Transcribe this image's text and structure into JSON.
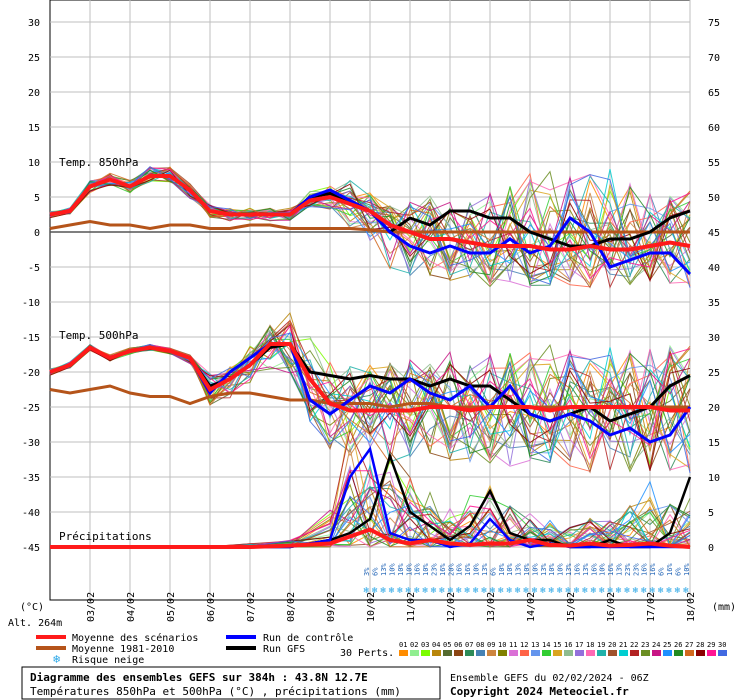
{
  "chart_data": {
    "type": "line",
    "title": "Diagramme des ensembles GEFS sur 384h : 43.8N 12.7E",
    "subtitle": "Températures 850hPa et 500hPa (°C) , précipitations (mm)",
    "run_info": "Ensemble GEFS du 02/02/2024 - 06Z",
    "copyright": "Copyright 2024 Meteociel.fr",
    "altitude": "Alt. 264m",
    "left_unit": "(°C)",
    "right_unit": "(mm)",
    "left_ticks": [
      "30",
      "25",
      "20",
      "15",
      "10",
      "5",
      "0",
      "-5",
      "-10",
      "-15",
      "-20",
      "-25",
      "-30",
      "-35",
      "-40",
      "-45"
    ],
    "right_ticks": [
      "75",
      "70",
      "65",
      "60",
      "55",
      "50",
      "45",
      "40",
      "35",
      "30",
      "25",
      "20",
      "15",
      "10",
      "5",
      "0"
    ],
    "x_labels": [
      "03/02",
      "04/02",
      "05/02",
      "06/02",
      "07/02",
      "08/02",
      "09/02",
      "10/02",
      "11/02",
      "12/02",
      "13/02",
      "14/02",
      "15/02",
      "16/02",
      "17/02",
      "18/02"
    ],
    "section_labels": {
      "t850": "Temp. 850hPa",
      "t500": "Temp. 500hPa",
      "precip": "Précipitations"
    },
    "legend": {
      "mean": "Moyenne des scénarios",
      "clim": "Moyenne 1981-2010",
      "snow": "Risque neige",
      "control": "Run de contrôle",
      "gfs": "Run GFS",
      "perts": "30 Perts."
    },
    "member_labels": [
      "01",
      "02",
      "03",
      "04",
      "05",
      "06",
      "07",
      "08",
      "09",
      "10",
      "11",
      "12",
      "13",
      "14",
      "15",
      "16",
      "17",
      "18",
      "19",
      "20",
      "21",
      "22",
      "23",
      "24",
      "25",
      "26",
      "27",
      "28",
      "29",
      "30"
    ],
    "member_colors": [
      "#ff8c00",
      "#90ee90",
      "#7cfc00",
      "#b8860b",
      "#556b2f",
      "#8b4513",
      "#2e8b57",
      "#4682b4",
      "#cd853f",
      "#808000",
      "#da70d6",
      "#ff6347",
      "#6495ed",
      "#32cd32",
      "#daa520",
      "#8fbc8f",
      "#9370db",
      "#ff69b4",
      "#20b2aa",
      "#a0522d",
      "#00ced1",
      "#b22222",
      "#6b8e23",
      "#c71585",
      "#1e90ff",
      "#228b22",
      "#d2691e",
      "#8b0000",
      "#ff1493",
      "#4169e1"
    ],
    "snow_row": [
      "3%",
      "6%",
      "13%",
      "10%",
      "10%",
      "10%",
      "16%",
      "10%",
      "23%",
      "16%",
      "20%",
      "16%",
      "16%",
      "10%",
      "13%",
      "6%",
      "10%",
      "10%",
      "13%",
      "10%",
      "10%",
      "13%",
      "10%",
      "10%",
      "13%",
      "16%",
      "13%",
      "16%",
      "10%",
      "16%",
      "13%",
      "23%",
      "23%",
      "16%",
      "16%",
      "6%",
      "16%",
      "6%",
      "10%"
    ],
    "t850": {
      "x_days": [
        0,
        0.5,
        1,
        1.5,
        2,
        2.5,
        3,
        3.5,
        4,
        4.5,
        5,
        5.5,
        6,
        6.5,
        7,
        7.5,
        8,
        8.5,
        9,
        9.5,
        10,
        10.5,
        11,
        11.5,
        12,
        12.5,
        13,
        13.5,
        14,
        14.5,
        15,
        15.5,
        16
      ],
      "mean": [
        2.5,
        3,
        6.5,
        7.5,
        6.5,
        8,
        8,
        6,
        3,
        2.5,
        2.5,
        2.5,
        2.5,
        4.5,
        5,
        4,
        3,
        1,
        0,
        -1,
        -1,
        -1.5,
        -2,
        -2,
        -2,
        -2.5,
        -2.5,
        -2,
        -2.5,
        -2.5,
        -2,
        -1.5,
        -2
      ],
      "control": [
        2.5,
        3,
        6.5,
        7.5,
        6.5,
        8,
        8,
        6,
        3,
        2.5,
        2.5,
        2.5,
        2.5,
        5,
        6,
        4.5,
        3,
        0,
        -2,
        -3,
        -2,
        -3,
        -3,
        -1,
        -3,
        -2,
        2,
        0,
        -5,
        -4,
        -3,
        -3,
        -6
      ],
      "gfs": [
        2.5,
        3,
        6.5,
        7.5,
        6.5,
        8,
        8,
        6,
        3,
        2.5,
        2.5,
        2.5,
        2.5,
        5,
        5.5,
        4,
        3,
        0,
        2,
        1,
        3,
        3,
        2,
        2,
        0,
        -1,
        -2,
        -2,
        -1,
        -1,
        0,
        2,
        3
      ],
      "clim": [
        0.5,
        1,
        1.5,
        1,
        1,
        0.5,
        1,
        1,
        0.5,
        0.5,
        1,
        1,
        0.5,
        0.5,
        0.5,
        0.5,
        0.3,
        0,
        0,
        0,
        0,
        0,
        0,
        0,
        0,
        0,
        0,
        0,
        0,
        0,
        0,
        0,
        0
      ],
      "spread_min": [
        2,
        2.5,
        5.5,
        6.5,
        5.5,
        7,
        7,
        4.5,
        2,
        1.5,
        1.5,
        1.5,
        1.5,
        3.5,
        3,
        0,
        -3,
        -6,
        -8,
        -8,
        -8,
        -8,
        -8.5,
        -8,
        -9,
        -9,
        -8.5,
        -9,
        -8.5,
        -8.5,
        -8,
        -8,
        -9
      ],
      "spread_max": [
        3,
        3.5,
        7.5,
        8.5,
        7.5,
        9.5,
        9.5,
        7,
        4,
        3.5,
        3.5,
        3.5,
        3.5,
        6,
        7,
        8,
        6,
        4,
        5,
        6,
        5,
        6,
        7,
        8,
        10,
        10,
        9,
        10,
        11,
        8,
        7,
        6,
        7
      ]
    },
    "t500": {
      "x_days": [
        0,
        0.5,
        1,
        1.5,
        2,
        2.5,
        3,
        3.5,
        4,
        4.5,
        5,
        5.5,
        6,
        6.5,
        7,
        7.5,
        8,
        8.5,
        9,
        9.5,
        10,
        10.5,
        11,
        11.5,
        12,
        12.5,
        13,
        13.5,
        14,
        14.5,
        15,
        15.5,
        16
      ],
      "mean": [
        -20,
        -19,
        -16.5,
        -18,
        -17,
        -16.5,
        -17,
        -18,
        -22.5,
        -21,
        -19,
        -16,
        -16,
        -21,
        -24.5,
        -25.5,
        -25.5,
        -25.5,
        -25.5,
        -25,
        -25,
        -25.5,
        -25,
        -25,
        -25,
        -25.5,
        -25,
        -25,
        -25,
        -25,
        -25,
        -25.5,
        -25.5
      ],
      "control": [
        -20,
        -19,
        -16.5,
        -18,
        -17,
        -16.5,
        -17,
        -18,
        -23,
        -20,
        -18,
        -16,
        -16,
        -24,
        -26,
        -24,
        -22,
        -23,
        -21,
        -23,
        -24,
        -22,
        -25,
        -22,
        -26,
        -27,
        -26,
        -27,
        -29,
        -28,
        -30,
        -29,
        -25
      ],
      "gfs": [
        -20,
        -19,
        -16.5,
        -18,
        -17,
        -16.5,
        -17,
        -18,
        -22,
        -21,
        -19,
        -16.5,
        -16,
        -20,
        -20.5,
        -21,
        -20.5,
        -21,
        -21,
        -22,
        -21,
        -22,
        -22,
        -24,
        -26,
        -27,
        -26,
        -25,
        -27,
        -26,
        -25,
        -22,
        -20.5
      ],
      "clim": [
        -22.5,
        -23,
        -22.5,
        -22,
        -23,
        -23.5,
        -23.5,
        -24.5,
        -23.5,
        -23,
        -23,
        -23.5,
        -24,
        -24,
        -24.5,
        -24.5,
        -24.5,
        -25,
        -24.5,
        -24.5,
        -25,
        -25,
        -25,
        -25,
        -25,
        -25,
        -25,
        -25,
        -25,
        -25,
        -25,
        -25,
        -25
      ],
      "spread_min": [
        -20.5,
        -19.5,
        -17,
        -18.5,
        -17.5,
        -17,
        -17.5,
        -19,
        -25,
        -24,
        -22,
        -20,
        -21,
        -28,
        -32,
        -33,
        -33,
        -34,
        -34,
        -34,
        -34,
        -35,
        -34,
        -35,
        -34,
        -35,
        -35,
        -36,
        -35,
        -36,
        -36,
        -35,
        -36
      ],
      "spread_max": [
        -19.5,
        -18.5,
        -16,
        -17.5,
        -16.5,
        -16,
        -16.5,
        -17.5,
        -20,
        -19,
        -16,
        -13,
        -11,
        -14,
        -17,
        -18,
        -18,
        -18,
        -17,
        -18,
        -16,
        -17,
        -16,
        -16,
        -16,
        -15,
        -16,
        -17,
        -15,
        -16,
        -15,
        -15,
        -15
      ]
    },
    "precip": {
      "x_days": [
        0,
        1,
        2,
        3,
        4,
        5,
        6,
        7,
        7.5,
        8,
        8.5,
        9,
        9.5,
        10,
        10.5,
        11,
        11.5,
        12,
        12.5,
        13,
        13.5,
        14,
        14.5,
        15,
        15.5,
        16
      ],
      "mean": [
        0,
        0,
        0,
        0,
        0,
        0,
        0.2,
        0.5,
        1.5,
        2.5,
        1,
        0.5,
        1,
        0.5,
        0.3,
        0.5,
        0.5,
        1,
        0.3,
        0.2,
        0.5,
        0.2,
        0.3,
        0.5,
        0.2,
        0
      ],
      "spread_max": [
        0,
        0,
        0,
        0,
        0.2,
        0.5,
        1,
        6,
        18,
        12,
        14,
        10,
        8,
        6,
        8,
        9,
        6,
        5,
        4,
        3,
        5,
        4,
        6,
        10,
        7,
        8
      ],
      "control": [
        0,
        0,
        0,
        0,
        0,
        0,
        0,
        1,
        10,
        14,
        2,
        1,
        1,
        0,
        0.5,
        4,
        1,
        0,
        0.5,
        0,
        0,
        0,
        0,
        0,
        0,
        0
      ],
      "gfs": [
        0,
        0,
        0,
        0,
        0,
        0,
        0,
        1,
        2,
        4,
        13,
        5,
        3,
        1,
        3,
        8,
        2,
        1,
        1,
        0,
        0,
        1,
        0,
        0,
        2,
        10
      ]
    }
  }
}
